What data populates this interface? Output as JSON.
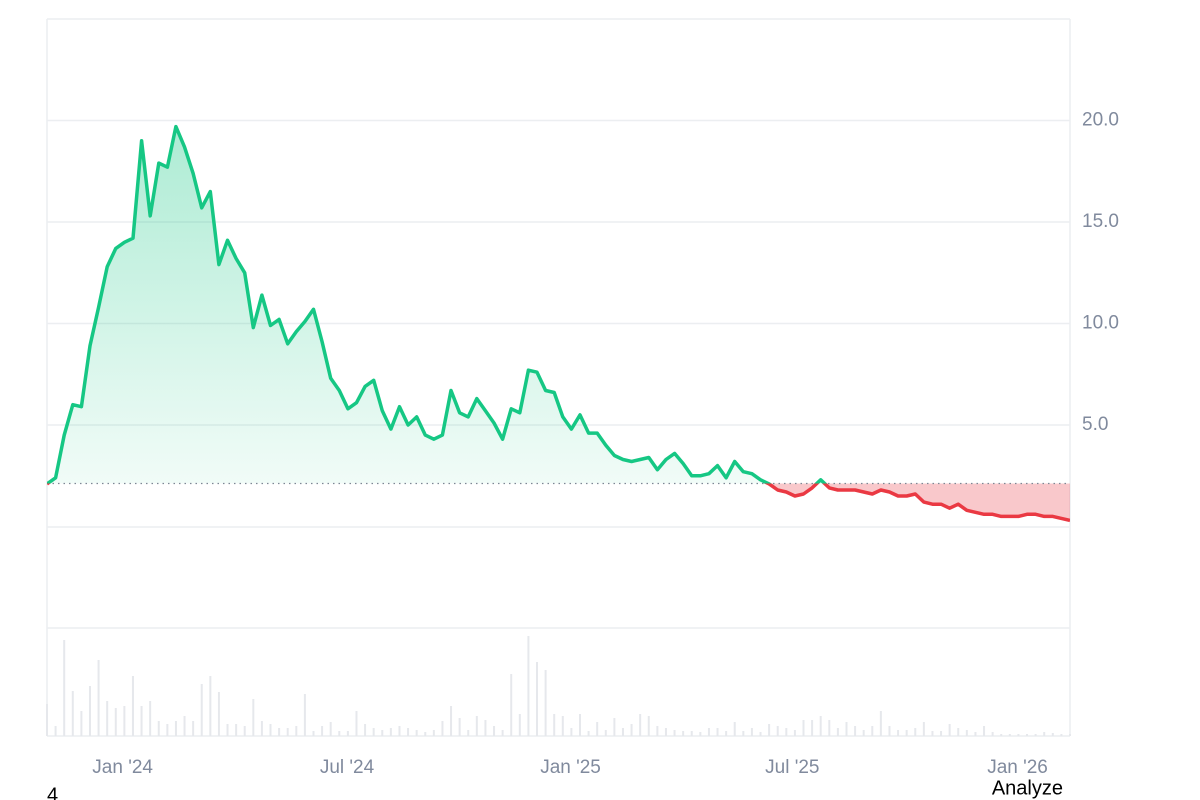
{
  "chart_data": {
    "type": "line",
    "values": [
      2.1,
      2.4,
      4.5,
      6.0,
      5.9,
      8.9,
      10.8,
      12.8,
      13.7,
      14.0,
      14.2,
      19.0,
      15.3,
      17.9,
      17.7,
      19.7,
      18.7,
      17.4,
      15.7,
      16.5,
      12.9,
      14.1,
      13.2,
      12.5,
      9.8,
      11.4,
      9.9,
      10.2,
      9.0,
      9.6,
      10.1,
      10.7,
      9.1,
      7.3,
      6.7,
      5.8,
      6.1,
      6.9,
      7.2,
      5.7,
      4.8,
      5.9,
      5.0,
      5.4,
      4.5,
      4.3,
      4.5,
      6.7,
      5.6,
      5.4,
      6.3,
      5.7,
      5.1,
      4.3,
      5.8,
      5.6,
      7.7,
      7.6,
      6.7,
      6.6,
      5.4,
      4.8,
      5.5,
      4.6,
      4.6,
      4.0,
      3.5,
      3.3,
      3.2,
      3.3,
      3.4,
      2.8,
      3.3,
      3.6,
      3.1,
      2.5,
      2.5,
      2.6,
      3.0,
      2.4,
      3.2,
      2.7,
      2.6,
      2.3,
      2.1,
      1.8,
      1.7,
      1.5,
      1.6,
      1.9,
      2.3,
      1.9,
      1.8,
      1.8,
      1.8,
      1.7,
      1.6,
      1.8,
      1.7,
      1.5,
      1.5,
      1.6,
      1.2,
      1.1,
      1.1,
      0.9,
      1.1,
      0.8,
      0.7,
      0.6,
      0.6,
      0.5,
      0.5,
      0.5,
      0.6,
      0.6,
      0.5,
      0.5,
      0.4,
      0.3
    ],
    "baseline": 2.12,
    "up_color": "#16c784",
    "down_color": "#ea3943",
    "xlim": [
      0,
      119
    ],
    "xticks": [
      {
        "value": 8.8,
        "label": "Jan '24"
      },
      {
        "value": 34.9,
        "label": "Jul '24"
      },
      {
        "value": 60.9,
        "label": "Jan '25"
      },
      {
        "value": 86.7,
        "label": "Jul '25"
      },
      {
        "value": 112.9,
        "label": "Jan '26"
      }
    ],
    "ylim": [
      -5,
      25
    ],
    "yticks": [
      {
        "value": 5,
        "label": "5.0"
      },
      {
        "value": 10,
        "label": "10.0"
      },
      {
        "value": 15,
        "label": "15.0"
      },
      {
        "value": 20,
        "label": "20.0"
      }
    ],
    "grid": true,
    "volume": [
      32,
      10,
      96,
      45,
      25,
      50,
      76,
      35,
      28,
      30,
      60,
      30,
      35,
      15,
      12,
      15,
      20,
      15,
      52,
      60,
      44,
      12,
      12,
      10,
      37,
      15,
      12,
      8,
      8,
      10,
      42,
      5,
      10,
      14,
      5,
      5,
      25,
      12,
      8,
      6,
      8,
      10,
      8,
      6,
      4,
      6,
      15,
      30,
      18,
      6,
      20,
      16,
      10,
      6,
      62,
      22,
      100,
      74,
      66,
      22,
      20,
      8,
      22,
      5,
      14,
      6,
      18,
      8,
      12,
      22,
      20,
      10,
      8,
      6,
      5,
      5,
      4,
      8,
      8,
      5,
      14,
      5,
      8,
      4,
      12,
      10,
      8,
      6,
      16,
      16,
      20,
      16,
      8,
      14,
      10,
      6,
      10,
      25,
      10,
      6,
      6,
      8,
      14,
      5,
      5,
      12,
      8,
      6,
      4,
      10,
      4,
      2,
      2,
      2,
      2,
      2,
      4,
      3,
      2,
      2
    ],
    "volume_ylim": [
      0,
      100
    ],
    "volume_color": "#e6e8ec"
  },
  "footer": {
    "left": "4",
    "right": "Analyze"
  }
}
